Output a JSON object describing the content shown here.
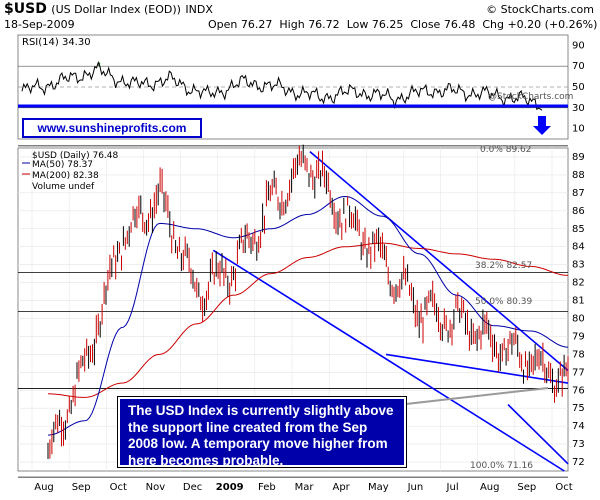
{
  "header": {
    "symbol": "$USD",
    "name": "(US Dollar Index (EOD))",
    "exchange": "INDX",
    "date": "18-Sep-2009",
    "open_label": "Open",
    "open": "76.27",
    "high_label": "High",
    "high": "76.72",
    "low_label": "Low",
    "low": "76.25",
    "close_label": "Close",
    "close": "76.48",
    "chg_label": "Chg",
    "chg": "+0.20 (+0.26%)",
    "credit": "© StockCharts.com"
  },
  "rsi_panel": {
    "label": "RSI(14) 34.30",
    "ticks": [
      "90",
      "70",
      "50",
      "30",
      "10"
    ],
    "credit": "@StockCharts.com",
    "url": "www.sunshineprofits.com"
  },
  "price_panel": {
    "legend_symbol": "$USD (Daily) 76.48",
    "legend_ma50": "MA(50) 78.37",
    "legend_ma200": "MA(200) 82.38",
    "legend_volume": "Volume undef",
    "fib_0": "0.0% 89.62",
    "fib_382": "38.2% 82.57",
    "fib_50": "50.0% 80.39",
    "fib_100": "100.0% 71.16",
    "callout": "The USD Index is currently slightly above the support line created from the Sep 2008 low. A temporary move higher from here becomes probable."
  },
  "colors": {
    "price": "#cc0000",
    "ma50": "#0000aa",
    "ma200": "#cc0000",
    "trend": "#0000ff",
    "rsi_fill": "#2e7d32",
    "callout_bg": "#0000aa"
  },
  "chart_data": [
    {
      "type": "line",
      "title": "RSI(14) 34.30",
      "ylim": [
        0,
        100
      ],
      "y_ticks": [
        90,
        70,
        50,
        30,
        10
      ],
      "overbought": 70,
      "oversold": 30,
      "x": [
        "Aug",
        "Sep",
        "Oct",
        "Nov",
        "Dec",
        "2009",
        "Feb",
        "Mar",
        "Apr",
        "May",
        "Jun",
        "Jul",
        "Aug",
        "Sep",
        "Oct"
      ],
      "series": [
        {
          "name": "RSI(14)",
          "values": [
            46,
            55,
            66,
            52,
            57,
            42,
            55,
            49,
            40,
            46,
            39,
            47,
            45,
            41,
            34
          ]
        }
      ]
    },
    {
      "type": "line",
      "title": "$USD (Daily) 76.48",
      "ylim": [
        71.5,
        89.5
      ],
      "y_ticks": [
        72,
        73,
        74,
        75,
        76,
        77,
        78,
        79,
        80,
        81,
        82,
        83,
        84,
        85,
        86,
        87,
        88,
        89
      ],
      "x": [
        "Aug",
        "Sep",
        "Oct",
        "Nov",
        "Dec",
        "2009",
        "Feb",
        "Mar",
        "Apr",
        "May",
        "Jun",
        "Jul",
        "Aug",
        "Sep",
        "Oct"
      ],
      "series": [
        {
          "name": "$USD",
          "values": [
            72.5,
            77.3,
            84.6,
            86.8,
            81.5,
            82.8,
            86.4,
            88.8,
            85.7,
            83.3,
            80.4,
            80.0,
            78.7,
            77.6,
            76.5
          ]
        },
        {
          "name": "MA(50)",
          "values": [
            73.5,
            74.3,
            79.5,
            85.3,
            85.0,
            84.5,
            85.0,
            85.8,
            86.8,
            85.7,
            83.6,
            81.3,
            79.6,
            79.3,
            78.4
          ]
        },
        {
          "name": "MA(200)",
          "values": [
            75.8,
            75.6,
            76.4,
            78.0,
            79.7,
            81.3,
            82.5,
            83.4,
            84.0,
            84.2,
            83.9,
            83.6,
            83.3,
            82.9,
            82.4
          ]
        }
      ],
      "fibonacci_levels": [
        {
          "label": "0.0%",
          "value": 89.62
        },
        {
          "label": "38.2%",
          "value": 82.57
        },
        {
          "label": "50.0%",
          "value": 80.39
        },
        {
          "label": "100.0%",
          "value": 71.16
        }
      ]
    }
  ]
}
